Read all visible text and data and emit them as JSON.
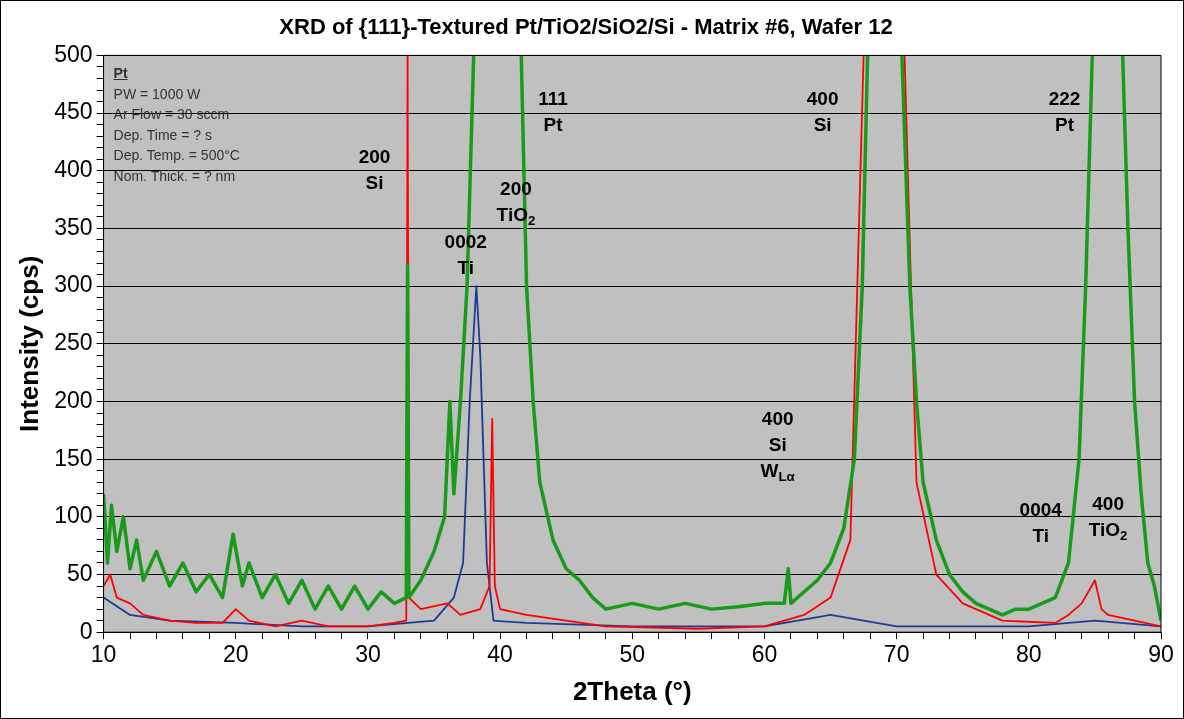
{
  "chart_data": {
    "type": "line",
    "title": "XRD of {111}-Textured Pt/TiO2/SiO2/Si - Matrix #6, Wafer 12",
    "xlabel": "2Theta (°)",
    "ylabel": "Intensity (cps)",
    "xlim": [
      10,
      90
    ],
    "ylim": [
      0,
      500
    ],
    "xticks": [
      10,
      {
        "value": 12,
        "label": null
      },
      {
        "value": 14,
        "label": null
      },
      {
        "value": 16,
        "label": null
      },
      {
        "value": 18,
        "label": null
      },
      20,
      {
        "value": 22,
        "label": null
      },
      {
        "value": 24,
        "label": null
      },
      {
        "value": 26,
        "label": null
      },
      {
        "value": 28,
        "label": null
      },
      30,
      {
        "value": 32,
        "label": null
      },
      {
        "value": 34,
        "label": null
      },
      {
        "value": 36,
        "label": null
      },
      {
        "value": 38,
        "label": null
      },
      40,
      {
        "value": 42,
        "label": null
      },
      {
        "value": 44,
        "label": null
      },
      {
        "value": 46,
        "label": null
      },
      {
        "value": 48,
        "label": null
      },
      50,
      {
        "value": 52,
        "label": null
      },
      {
        "value": 54,
        "label": null
      },
      {
        "value": 56,
        "label": null
      },
      {
        "value": 58,
        "label": null
      },
      60,
      {
        "value": 62,
        "label": null
      },
      {
        "value": 64,
        "label": null
      },
      {
        "value": 66,
        "label": null
      },
      {
        "value": 68,
        "label": null
      },
      70,
      {
        "value": 72,
        "label": null
      },
      {
        "value": 74,
        "label": null
      },
      {
        "value": 76,
        "label": null
      },
      {
        "value": 78,
        "label": null
      },
      80,
      {
        "value": 82,
        "label": null
      },
      {
        "value": 84,
        "label": null
      },
      {
        "value": 86,
        "label": null
      },
      {
        "value": 88,
        "label": null
      },
      90
    ],
    "yticks": [
      0,
      {
        "value": 10,
        "label": null
      },
      {
        "value": 20,
        "label": null
      },
      {
        "value": 30,
        "label": null
      },
      {
        "value": 40,
        "label": null
      },
      50,
      {
        "value": 60,
        "label": null
      },
      {
        "value": 70,
        "label": null
      },
      {
        "value": 80,
        "label": null
      },
      {
        "value": 90,
        "label": null
      },
      100,
      {
        "value": 110,
        "label": null
      },
      {
        "value": 120,
        "label": null
      },
      {
        "value": 130,
        "label": null
      },
      {
        "value": 140,
        "label": null
      },
      150,
      {
        "value": 160,
        "label": null
      },
      {
        "value": 170,
        "label": null
      },
      {
        "value": 180,
        "label": null
      },
      {
        "value": 190,
        "label": null
      },
      200,
      {
        "value": 210,
        "label": null
      },
      {
        "value": 220,
        "label": null
      },
      {
        "value": 230,
        "label": null
      },
      {
        "value": 240,
        "label": null
      },
      250,
      {
        "value": 260,
        "label": null
      },
      {
        "value": 270,
        "label": null
      },
      {
        "value": 280,
        "label": null
      },
      {
        "value": 290,
        "label": null
      },
      300,
      {
        "value": 310,
        "label": null
      },
      {
        "value": 320,
        "label": null
      },
      {
        "value": 330,
        "label": null
      },
      {
        "value": 340,
        "label": null
      },
      350,
      {
        "value": 360,
        "label": null
      },
      {
        "value": 370,
        "label": null
      },
      {
        "value": 380,
        "label": null
      },
      {
        "value": 390,
        "label": null
      },
      400,
      {
        "value": 410,
        "label": null
      },
      {
        "value": 420,
        "label": null
      },
      {
        "value": 430,
        "label": null
      },
      {
        "value": 440,
        "label": null
      },
      450,
      {
        "value": 460,
        "label": null
      },
      {
        "value": 470,
        "label": null
      },
      {
        "value": 480,
        "label": null
      },
      {
        "value": 490,
        "label": null
      },
      500
    ],
    "grid": "y",
    "legend": false,
    "marker": "none",
    "line_style": "solid",
    "series": [
      {
        "color": "#1a9a1a",
        "x": [
          10,
          10.3,
          10.6,
          11,
          11.5,
          12,
          12.5,
          13,
          14,
          15,
          16,
          17,
          18,
          19,
          19.8,
          20.5,
          21,
          22,
          23,
          24,
          25,
          26,
          27,
          28,
          29,
          30,
          31,
          32,
          32.9,
          33,
          33.1,
          34,
          35,
          35.8,
          36.2,
          36.5,
          37,
          37.5,
          38,
          39.8,
          41.6,
          42,
          42.5,
          43,
          44,
          45,
          46,
          47,
          48,
          50,
          52,
          54,
          56,
          58,
          60,
          61.5,
          61.8,
          62,
          63,
          64,
          65,
          66,
          66.8,
          67.4,
          67.8,
          69,
          70.4,
          71,
          71.5,
          72,
          73,
          74,
          75,
          76,
          77,
          78,
          79,
          80,
          81,
          82,
          83,
          83.8,
          84.3,
          84.8,
          86,
          87.1,
          87.5,
          88,
          88.5,
          89,
          89.5,
          90
        ],
        "values": [
          120,
          60,
          110,
          70,
          100,
          55,
          80,
          45,
          70,
          40,
          60,
          35,
          50,
          30,
          85,
          40,
          60,
          30,
          50,
          25,
          45,
          20,
          40,
          20,
          40,
          20,
          35,
          25,
          30,
          318,
          30,
          45,
          70,
          100,
          200,
          120,
          200,
          300,
          500,
          null,
          500,
          300,
          200,
          130,
          80,
          55,
          45,
          30,
          20,
          25,
          20,
          25,
          20,
          22,
          25,
          25,
          55,
          25,
          35,
          45,
          60,
          90,
          150,
          300,
          500,
          null,
          500,
          300,
          200,
          130,
          80,
          50,
          35,
          25,
          20,
          15,
          20,
          20,
          25,
          30,
          60,
          150,
          300,
          500,
          null,
          500,
          350,
          200,
          120,
          60,
          40,
          10
        ]
      },
      {
        "color": "#ff0000",
        "x": [
          10,
          10.5,
          11,
          12,
          13,
          15,
          17,
          19,
          20,
          21,
          23,
          25,
          27,
          30,
          32,
          32.9,
          33,
          33.1,
          34,
          36,
          37,
          38.5,
          39.2,
          39.4,
          39.6,
          40,
          42,
          45,
          48,
          55,
          60,
          63,
          65,
          66.5,
          67.5,
          69,
          70.6,
          71.5,
          73,
          75,
          78,
          82,
          83,
          84,
          85,
          85.5,
          86,
          88,
          90
        ],
        "values": [
          40,
          50,
          30,
          25,
          15,
          10,
          8,
          8,
          20,
          10,
          5,
          10,
          5,
          5,
          8,
          10,
          500,
          30,
          20,
          25,
          15,
          20,
          40,
          185,
          40,
          20,
          15,
          10,
          5,
          3,
          5,
          15,
          30,
          80,
          500,
          null,
          500,
          130,
          50,
          25,
          10,
          8,
          15,
          25,
          45,
          20,
          15,
          10,
          5
        ]
      },
      {
        "color": "#1f3a93",
        "x": [
          10,
          12,
          15,
          20,
          25,
          30,
          35,
          36.5,
          37.2,
          37.7,
          38.2,
          38.5,
          39,
          39.5,
          42,
          50,
          60,
          65,
          70,
          80,
          85,
          90
        ],
        "values": [
          30,
          15,
          10,
          8,
          5,
          5,
          10,
          30,
          60,
          200,
          300,
          240,
          60,
          10,
          8,
          5,
          5,
          15,
          5,
          5,
          10,
          5
        ]
      }
    ],
    "annotations": [
      "Pt\nPW = 1000 W\nAr Flow = 30 sccm\nDep. Time = ? s\nDep. Temp. = 500°C\nNom. Thick. = ? nm",
      "200\nSi",
      "0002\nTi",
      "111\nPt",
      "200\nTiO$_{2}$",
      "400\nSi",
      "400\nSi\nW$_{Lα}$",
      "222\nPt",
      "0004\nTi",
      "400\nTiO$_{2}$"
    ]
  }
}
